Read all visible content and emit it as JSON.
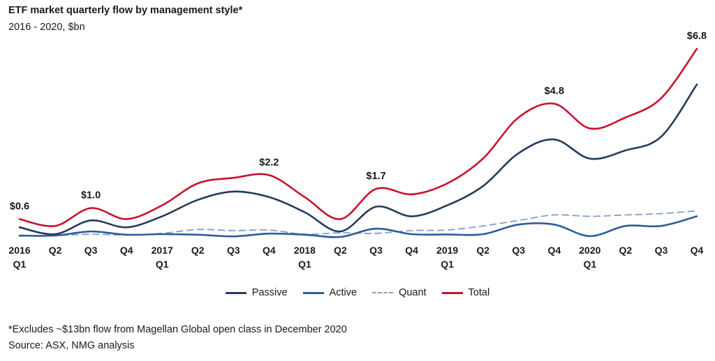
{
  "chart_data": {
    "type": "line",
    "title": "ETF market quarterly flow by management style*",
    "subtitle": "2016 - 2020, $bn",
    "categories": [
      {
        "q": "2016",
        "y": "Q1"
      },
      {
        "q": "Q2",
        "y": ""
      },
      {
        "q": "Q3",
        "y": ""
      },
      {
        "q": "Q4",
        "y": ""
      },
      {
        "q": "2017",
        "y": "Q1"
      },
      {
        "q": "Q2",
        "y": ""
      },
      {
        "q": "Q3",
        "y": ""
      },
      {
        "q": "Q4",
        "y": ""
      },
      {
        "q": "2018",
        "y": "Q1"
      },
      {
        "q": "Q2",
        "y": ""
      },
      {
        "q": "Q3",
        "y": ""
      },
      {
        "q": "Q4",
        "y": ""
      },
      {
        "q": "2019",
        "y": "Q1"
      },
      {
        "q": "Q2",
        "y": ""
      },
      {
        "q": "Q3",
        "y": ""
      },
      {
        "q": "Q4",
        "y": ""
      },
      {
        "q": "2020",
        "y": "Q1"
      },
      {
        "q": "Q2",
        "y": ""
      },
      {
        "q": "Q3",
        "y": ""
      },
      {
        "q": "Q4",
        "y": ""
      }
    ],
    "series": [
      {
        "name": "Passive",
        "color": "#243a5e",
        "dash": false,
        "values": [
          0.3,
          0.05,
          0.55,
          0.3,
          0.7,
          1.3,
          1.6,
          1.4,
          0.85,
          0.15,
          1.05,
          0.7,
          1.1,
          1.8,
          3.0,
          3.5,
          2.8,
          3.1,
          3.6,
          5.5
        ]
      },
      {
        "name": "Active",
        "color": "#2e5c9a",
        "dash": false,
        "values": [
          0.0,
          0.0,
          0.15,
          0.03,
          0.05,
          0.03,
          -0.03,
          0.07,
          0.03,
          -0.05,
          0.25,
          0.05,
          0.04,
          0.05,
          0.4,
          0.4,
          -0.02,
          0.35,
          0.35,
          0.7
        ]
      },
      {
        "name": "Quant",
        "color": "#7fa1cc",
        "dash": true,
        "values": [
          -0.02,
          0.0,
          0.05,
          0.02,
          0.08,
          0.22,
          0.18,
          0.2,
          0.05,
          0.1,
          0.08,
          0.18,
          0.2,
          0.35,
          0.55,
          0.75,
          0.7,
          0.75,
          0.8,
          0.9
        ]
      },
      {
        "name": "Total",
        "color": "#c8102e",
        "dash": false,
        "values": [
          0.6,
          0.35,
          1.0,
          0.6,
          1.1,
          1.9,
          2.1,
          2.2,
          1.4,
          0.6,
          1.7,
          1.5,
          1.9,
          2.8,
          4.3,
          4.8,
          3.9,
          4.3,
          5.0,
          6.8
        ]
      }
    ],
    "data_labels": [
      {
        "index": 0,
        "text": "$0.6"
      },
      {
        "index": 2,
        "text": "$1.0"
      },
      {
        "index": 7,
        "text": "$2.2"
      },
      {
        "index": 10,
        "text": "$1.7"
      },
      {
        "index": 15,
        "text": "$4.8"
      },
      {
        "index": 19,
        "text": "$6.8"
      }
    ],
    "ylim": [
      0,
      6.8
    ],
    "grid": false,
    "legend_position": "bottom-center"
  },
  "footnote": "*Excludes ~$13bn flow from Magellan Global open class in December 2020",
  "source": "Source: ASX, NMG analysis"
}
